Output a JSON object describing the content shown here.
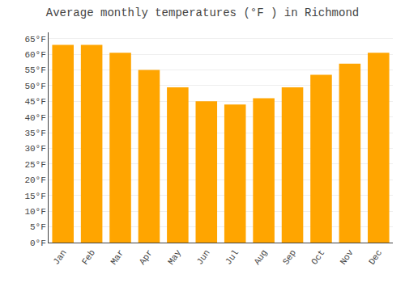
{
  "chart_data": {
    "type": "bar",
    "title": "Average monthly temperatures (°F ) in Richmond",
    "categories": [
      "Jan",
      "Feb",
      "Mar",
      "Apr",
      "May",
      "Jun",
      "Jul",
      "Aug",
      "Sep",
      "Oct",
      "Nov",
      "Dec"
    ],
    "values": [
      63,
      63,
      60.5,
      55,
      49.5,
      45,
      44,
      46,
      49.5,
      53.5,
      57,
      60.5
    ],
    "color": "#FFA500",
    "ylim": [
      0,
      67
    ],
    "yticks": [
      {
        "value": 0,
        "label": "0°F"
      },
      {
        "value": 5,
        "label": "5°F"
      },
      {
        "value": 10,
        "label": "10°F"
      },
      {
        "value": 15,
        "label": "15°F"
      },
      {
        "value": 20,
        "label": "20°F"
      },
      {
        "value": 25,
        "label": "25°F"
      },
      {
        "value": 30,
        "label": "30°F"
      },
      {
        "value": 35,
        "label": "35°F"
      },
      {
        "value": 40,
        "label": "40°F"
      },
      {
        "value": 45,
        "label": "45°F"
      },
      {
        "value": 50,
        "label": "50°F"
      },
      {
        "value": 55,
        "label": "55°F"
      },
      {
        "value": 60,
        "label": "60°F"
      },
      {
        "value": 65,
        "label": "65°F"
      }
    ],
    "grid": true
  }
}
